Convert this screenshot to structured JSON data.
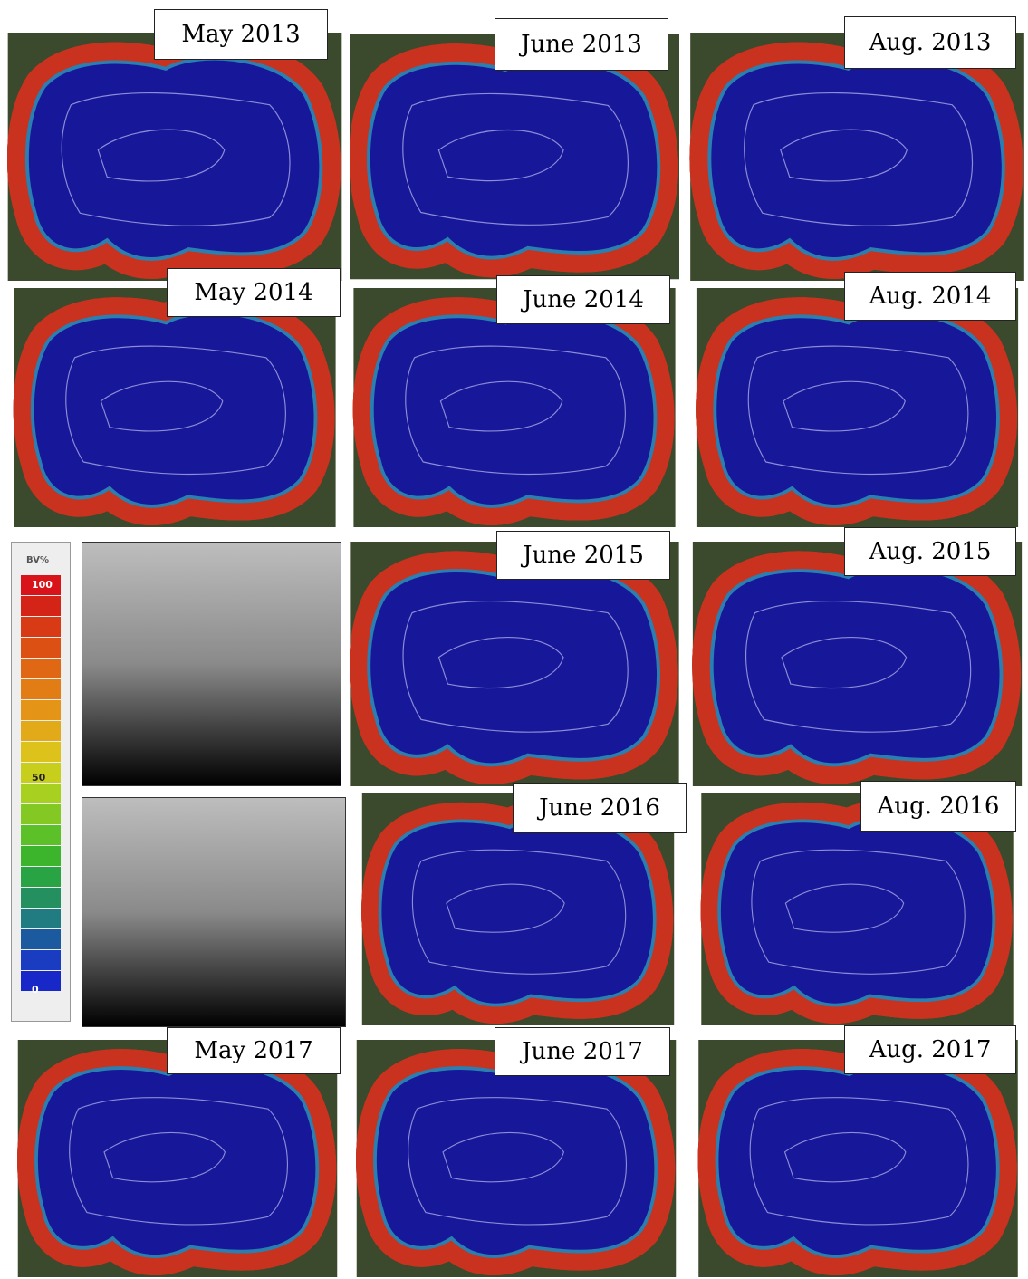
{
  "panels": [
    {
      "label": "May 2013"
    },
    {
      "label": "June 2013"
    },
    {
      "label": "Aug. 2013"
    },
    {
      "label": "May 2014"
    },
    {
      "label": "June 2014"
    },
    {
      "label": "Aug. 2014"
    },
    {
      "label": "June 2015"
    },
    {
      "label": "Aug. 2015"
    },
    {
      "label": "June 2016"
    },
    {
      "label": "Aug. 2016"
    },
    {
      "label": "May 2017"
    },
    {
      "label": "June 2017"
    },
    {
      "label": "Aug. 2017"
    }
  ],
  "legend": {
    "title": "BV%",
    "labels": [
      "100",
      "50",
      "0"
    ]
  }
}
